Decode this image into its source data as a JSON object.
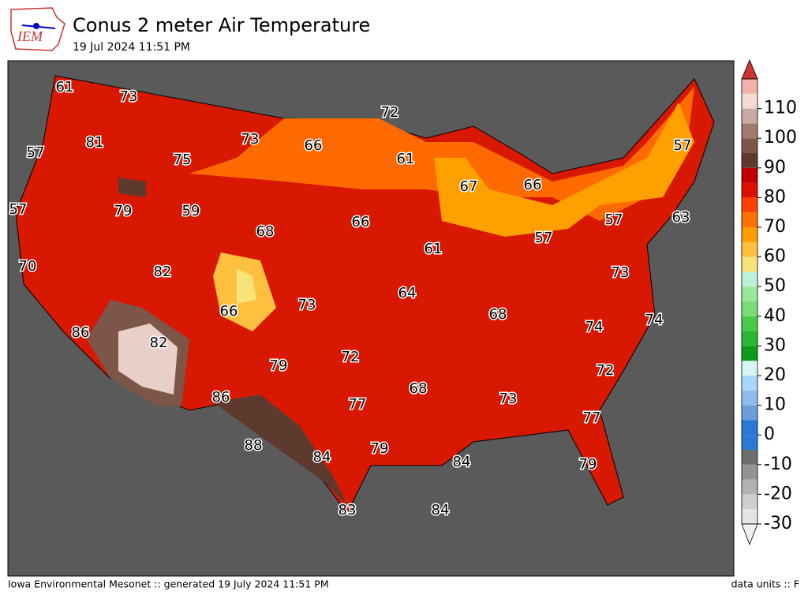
{
  "header": {
    "logo": "IEM",
    "title": "Conus 2 meter Air Temperature",
    "subtitle": "19 Jul 2024 11:51 PM"
  },
  "map": {
    "labels": [
      61,
      73,
      72,
      57,
      81,
      73,
      66,
      61,
      57,
      75,
      67,
      66,
      57,
      79,
      59,
      68,
      66,
      57,
      57,
      63,
      70,
      82,
      61,
      73,
      64,
      73,
      66,
      68,
      74,
      74,
      86,
      82,
      72,
      79,
      72,
      68,
      86,
      77,
      73,
      77,
      88,
      84,
      79,
      84,
      79,
      83,
      84
    ]
  },
  "colorbar": {
    "lim": [
      -30,
      120
    ],
    "ticks": [
      -30,
      -20,
      -10,
      0,
      10,
      20,
      30,
      40,
      50,
      60,
      70,
      80,
      90,
      100,
      110
    ],
    "bin_edges": [
      -30,
      -25,
      -20,
      -15,
      -10,
      -5,
      0,
      5,
      10,
      15,
      20,
      25,
      30,
      35,
      40,
      45,
      50,
      55,
      60,
      65,
      70,
      75,
      80,
      85,
      90,
      95,
      100,
      105,
      110,
      115,
      120
    ],
    "colors": [
      "#e4e4e4",
      "#cfcfcf",
      "#b2b2b2",
      "#939393",
      "#6e6e6e",
      "#2a78d8",
      "#2a78d8",
      "#6a9fdc",
      "#8cbcf0",
      "#a8d8f8",
      "#d6f4f0",
      "#0e9a1a",
      "#2ab830",
      "#48cc48",
      "#78dd78",
      "#9ae89a",
      "#b8f2d8",
      "#f8e27a",
      "#ffc040",
      "#ff9c00",
      "#ff7000",
      "#ff4000",
      "#dd1000",
      "#c00000",
      "#5e3a2e",
      "#7c5648",
      "#a07a6c",
      "#c8aaa2",
      "#f2dcd6",
      "#f4b2aa"
    ],
    "under_color": "#f0f0f0",
    "over_color": "#cc3333"
  },
  "footer": {
    "left": "Iowa Environmental Mesonet :: generated 19 July 2024 11:51 PM",
    "right": "data units :: F"
  }
}
